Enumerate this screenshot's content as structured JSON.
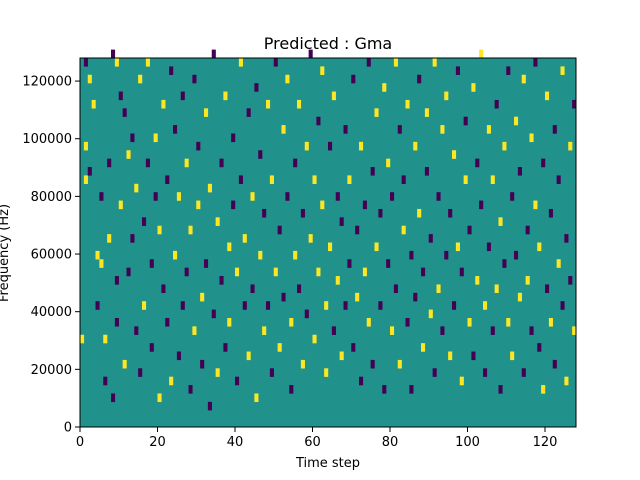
{
  "chart_data": {
    "type": "heatmap",
    "title": "Predicted : Gma",
    "xlabel": "Time step",
    "ylabel": "Frequency (Hz)",
    "xlim": [
      0,
      128
    ],
    "ylim": [
      0,
      128000
    ],
    "xticks": [
      0,
      20,
      40,
      60,
      80,
      100,
      120
    ],
    "yticks": [
      0,
      20000,
      40000,
      60000,
      80000,
      100000,
      120000
    ],
    "grid": false,
    "legend": "none",
    "n_time_steps": 128,
    "n_freq_bins": 44,
    "value_levels": [
      -1,
      0,
      1
    ],
    "colormap": "viridis",
    "level_colors": {
      "low": "#440154",
      "mid": "#21918c",
      "high": "#fde725"
    },
    "cells": [
      [
        0,
        10,
        1
      ],
      [
        1,
        43,
        -1
      ],
      [
        1,
        29,
        1
      ],
      [
        1,
        33,
        1
      ],
      [
        2,
        41,
        1
      ],
      [
        2,
        30,
        -1
      ],
      [
        3,
        38,
        1
      ],
      [
        4,
        20,
        1
      ],
      [
        4,
        14,
        -1
      ],
      [
        5,
        27,
        -1
      ],
      [
        5,
        19,
        1
      ],
      [
        6,
        10,
        1
      ],
      [
        6,
        5,
        -1
      ],
      [
        7,
        31,
        -1
      ],
      [
        7,
        22,
        1
      ],
      [
        8,
        44,
        -1
      ],
      [
        8,
        3,
        -1
      ],
      [
        9,
        43,
        1
      ],
      [
        9,
        17,
        -1
      ],
      [
        9,
        12,
        -1
      ],
      [
        10,
        39,
        -1
      ],
      [
        10,
        26,
        1
      ],
      [
        11,
        7,
        1
      ],
      [
        11,
        37,
        -1
      ],
      [
        12,
        32,
        1
      ],
      [
        12,
        18,
        -1
      ],
      [
        13,
        34,
        -1
      ],
      [
        13,
        22,
        -1
      ],
      [
        14,
        11,
        -1
      ],
      [
        14,
        28,
        1
      ],
      [
        15,
        41,
        1
      ],
      [
        15,
        6,
        -1
      ],
      [
        16,
        24,
        -1
      ],
      [
        16,
        14,
        1
      ],
      [
        17,
        31,
        -1
      ],
      [
        17,
        43,
        1
      ],
      [
        18,
        19,
        -1
      ],
      [
        18,
        9,
        -1
      ],
      [
        19,
        34,
        1
      ],
      [
        19,
        27,
        -1
      ],
      [
        20,
        3,
        1
      ],
      [
        20,
        23,
        1
      ],
      [
        21,
        38,
        1
      ],
      [
        21,
        16,
        -1
      ],
      [
        22,
        12,
        -1
      ],
      [
        22,
        29,
        -1
      ],
      [
        23,
        42,
        -1
      ],
      [
        23,
        5,
        1
      ],
      [
        24,
        20,
        1
      ],
      [
        24,
        35,
        -1
      ],
      [
        25,
        8,
        -1
      ],
      [
        25,
        27,
        1
      ],
      [
        26,
        14,
        -1
      ],
      [
        26,
        39,
        -1
      ],
      [
        27,
        31,
        1
      ],
      [
        27,
        18,
        -1
      ],
      [
        28,
        4,
        -1
      ],
      [
        28,
        23,
        1
      ],
      [
        29,
        41,
        -1
      ],
      [
        29,
        11,
        1
      ],
      [
        30,
        33,
        -1
      ],
      [
        30,
        26,
        1
      ],
      [
        31,
        15,
        1
      ],
      [
        31,
        7,
        -1
      ],
      [
        32,
        37,
        1
      ],
      [
        32,
        19,
        -1
      ],
      [
        33,
        2,
        -1
      ],
      [
        33,
        28,
        1
      ],
      [
        34,
        44,
        -1
      ],
      [
        34,
        13,
        -1
      ],
      [
        35,
        24,
        1
      ],
      [
        35,
        6,
        1
      ],
      [
        36,
        31,
        -1
      ],
      [
        36,
        17,
        -1
      ],
      [
        37,
        39,
        1
      ],
      [
        37,
        9,
        -1
      ],
      [
        38,
        21,
        1
      ],
      [
        38,
        12,
        1
      ],
      [
        39,
        34,
        -1
      ],
      [
        39,
        26,
        -1
      ],
      [
        40,
        18,
        1
      ],
      [
        40,
        5,
        -1
      ],
      [
        41,
        43,
        1
      ],
      [
        41,
        29,
        -1
      ],
      [
        42,
        14,
        -1
      ],
      [
        42,
        22,
        1
      ],
      [
        43,
        37,
        -1
      ],
      [
        43,
        8,
        1
      ],
      [
        44,
        27,
        1
      ],
      [
        44,
        16,
        -1
      ],
      [
        45,
        40,
        -1
      ],
      [
        45,
        3,
        1
      ],
      [
        46,
        32,
        -1
      ],
      [
        46,
        20,
        1
      ],
      [
        47,
        11,
        1
      ],
      [
        47,
        25,
        -1
      ],
      [
        48,
        38,
        1
      ],
      [
        48,
        14,
        -1
      ],
      [
        49,
        6,
        -1
      ],
      [
        49,
        29,
        1
      ],
      [
        50,
        43,
        -1
      ],
      [
        50,
        18,
        1
      ],
      [
        51,
        23,
        -1
      ],
      [
        51,
        9,
        1
      ],
      [
        52,
        35,
        1
      ],
      [
        52,
        15,
        -1
      ],
      [
        53,
        41,
        1
      ],
      [
        53,
        27,
        -1
      ],
      [
        54,
        12,
        1
      ],
      [
        54,
        4,
        -1
      ],
      [
        55,
        31,
        -1
      ],
      [
        55,
        20,
        1
      ],
      [
        56,
        38,
        1
      ],
      [
        56,
        16,
        -1
      ],
      [
        57,
        25,
        -1
      ],
      [
        57,
        7,
        1
      ],
      [
        58,
        33,
        1
      ],
      [
        58,
        13,
        -1
      ],
      [
        59,
        44,
        -1
      ],
      [
        59,
        22,
        1
      ],
      [
        60,
        29,
        1
      ],
      [
        60,
        10,
        1
      ],
      [
        61,
        36,
        -1
      ],
      [
        61,
        18,
        1
      ],
      [
        62,
        42,
        1
      ],
      [
        62,
        26,
        1
      ],
      [
        63,
        14,
        1
      ],
      [
        63,
        6,
        1
      ],
      [
        64,
        33,
        -1
      ],
      [
        64,
        21,
        1
      ],
      [
        65,
        39,
        1
      ],
      [
        65,
        11,
        -1
      ],
      [
        66,
        27,
        -1
      ],
      [
        66,
        17,
        1
      ],
      [
        67,
        24,
        -1
      ],
      [
        67,
        8,
        1
      ],
      [
        68,
        35,
        -1
      ],
      [
        68,
        14,
        -1
      ],
      [
        69,
        19,
        -1
      ],
      [
        69,
        29,
        1
      ],
      [
        70,
        41,
        -1
      ],
      [
        70,
        9,
        -1
      ],
      [
        71,
        23,
        -1
      ],
      [
        71,
        15,
        1
      ],
      [
        72,
        33,
        1
      ],
      [
        72,
        5,
        -1
      ],
      [
        73,
        26,
        -1
      ],
      [
        73,
        18,
        1
      ],
      [
        74,
        43,
        -1
      ],
      [
        74,
        12,
        1
      ],
      [
        75,
        30,
        -1
      ],
      [
        75,
        7,
        -1
      ],
      [
        76,
        21,
        1
      ],
      [
        76,
        37,
        1
      ],
      [
        77,
        14,
        -1
      ],
      [
        77,
        25,
        -1
      ],
      [
        78,
        40,
        1
      ],
      [
        78,
        4,
        -1
      ],
      [
        79,
        31,
        1
      ],
      [
        79,
        19,
        -1
      ],
      [
        80,
        27,
        -1
      ],
      [
        80,
        11,
        1
      ],
      [
        81,
        43,
        1
      ],
      [
        81,
        16,
        -1
      ],
      [
        82,
        35,
        -1
      ],
      [
        82,
        7,
        1
      ],
      [
        83,
        23,
        1
      ],
      [
        83,
        29,
        -1
      ],
      [
        84,
        12,
        -1
      ],
      [
        84,
        38,
        1
      ],
      [
        85,
        20,
        -1
      ],
      [
        85,
        4,
        -1
      ],
      [
        86,
        33,
        1
      ],
      [
        86,
        15,
        -1
      ],
      [
        87,
        41,
        -1
      ],
      [
        87,
        25,
        1
      ],
      [
        88,
        9,
        1
      ],
      [
        88,
        18,
        -1
      ],
      [
        89,
        30,
        -1
      ],
      [
        89,
        37,
        1
      ],
      [
        90,
        13,
        1
      ],
      [
        90,
        22,
        -1
      ],
      [
        91,
        43,
        1
      ],
      [
        91,
        6,
        -1
      ],
      [
        92,
        27,
        -1
      ],
      [
        92,
        16,
        1
      ],
      [
        93,
        35,
        1
      ],
      [
        93,
        11,
        -1
      ],
      [
        94,
        20,
        -1
      ],
      [
        94,
        39,
        1
      ],
      [
        95,
        8,
        1
      ],
      [
        95,
        25,
        -1
      ],
      [
        96,
        32,
        1
      ],
      [
        96,
        14,
        -1
      ],
      [
        97,
        42,
        -1
      ],
      [
        97,
        21,
        1
      ],
      [
        98,
        18,
        -1
      ],
      [
        98,
        5,
        1
      ],
      [
        99,
        29,
        1
      ],
      [
        99,
        36,
        -1
      ],
      [
        100,
        12,
        1
      ],
      [
        100,
        23,
        -1
      ],
      [
        101,
        40,
        1
      ],
      [
        101,
        8,
        -1
      ],
      [
        102,
        31,
        -1
      ],
      [
        102,
        17,
        1
      ],
      [
        103,
        26,
        -1
      ],
      [
        103,
        44,
        1
      ],
      [
        104,
        14,
        1
      ],
      [
        104,
        6,
        -1
      ],
      [
        105,
        35,
        1
      ],
      [
        105,
        21,
        -1
      ],
      [
        106,
        11,
        -1
      ],
      [
        106,
        29,
        1
      ],
      [
        107,
        38,
        -1
      ],
      [
        107,
        16,
        1
      ],
      [
        108,
        24,
        1
      ],
      [
        108,
        4,
        -1
      ],
      [
        109,
        33,
        1
      ],
      [
        109,
        19,
        -1
      ],
      [
        110,
        42,
        -1
      ],
      [
        110,
        12,
        1
      ],
      [
        111,
        27,
        -1
      ],
      [
        111,
        8,
        1
      ],
      [
        112,
        36,
        1
      ],
      [
        112,
        20,
        -1
      ],
      [
        113,
        15,
        1
      ],
      [
        113,
        30,
        -1
      ],
      [
        114,
        41,
        1
      ],
      [
        114,
        6,
        -1
      ],
      [
        115,
        23,
        -1
      ],
      [
        115,
        17,
        1
      ],
      [
        116,
        34,
        1
      ],
      [
        116,
        11,
        -1
      ],
      [
        117,
        26,
        1
      ],
      [
        117,
        43,
        -1
      ],
      [
        118,
        9,
        -1
      ],
      [
        118,
        21,
        1
      ],
      [
        119,
        31,
        -1
      ],
      [
        119,
        4,
        1
      ],
      [
        120,
        39,
        1
      ],
      [
        120,
        16,
        -1
      ],
      [
        121,
        25,
        -1
      ],
      [
        121,
        12,
        1
      ],
      [
        122,
        35,
        -1
      ],
      [
        122,
        7,
        -1
      ],
      [
        123,
        19,
        1
      ],
      [
        123,
        29,
        -1
      ],
      [
        124,
        42,
        1
      ],
      [
        124,
        14,
        -1
      ],
      [
        125,
        22,
        -1
      ],
      [
        125,
        5,
        1
      ],
      [
        126,
        33,
        1
      ],
      [
        126,
        17,
        -1
      ],
      [
        127,
        38,
        -1
      ],
      [
        127,
        11,
        1
      ]
    ]
  }
}
